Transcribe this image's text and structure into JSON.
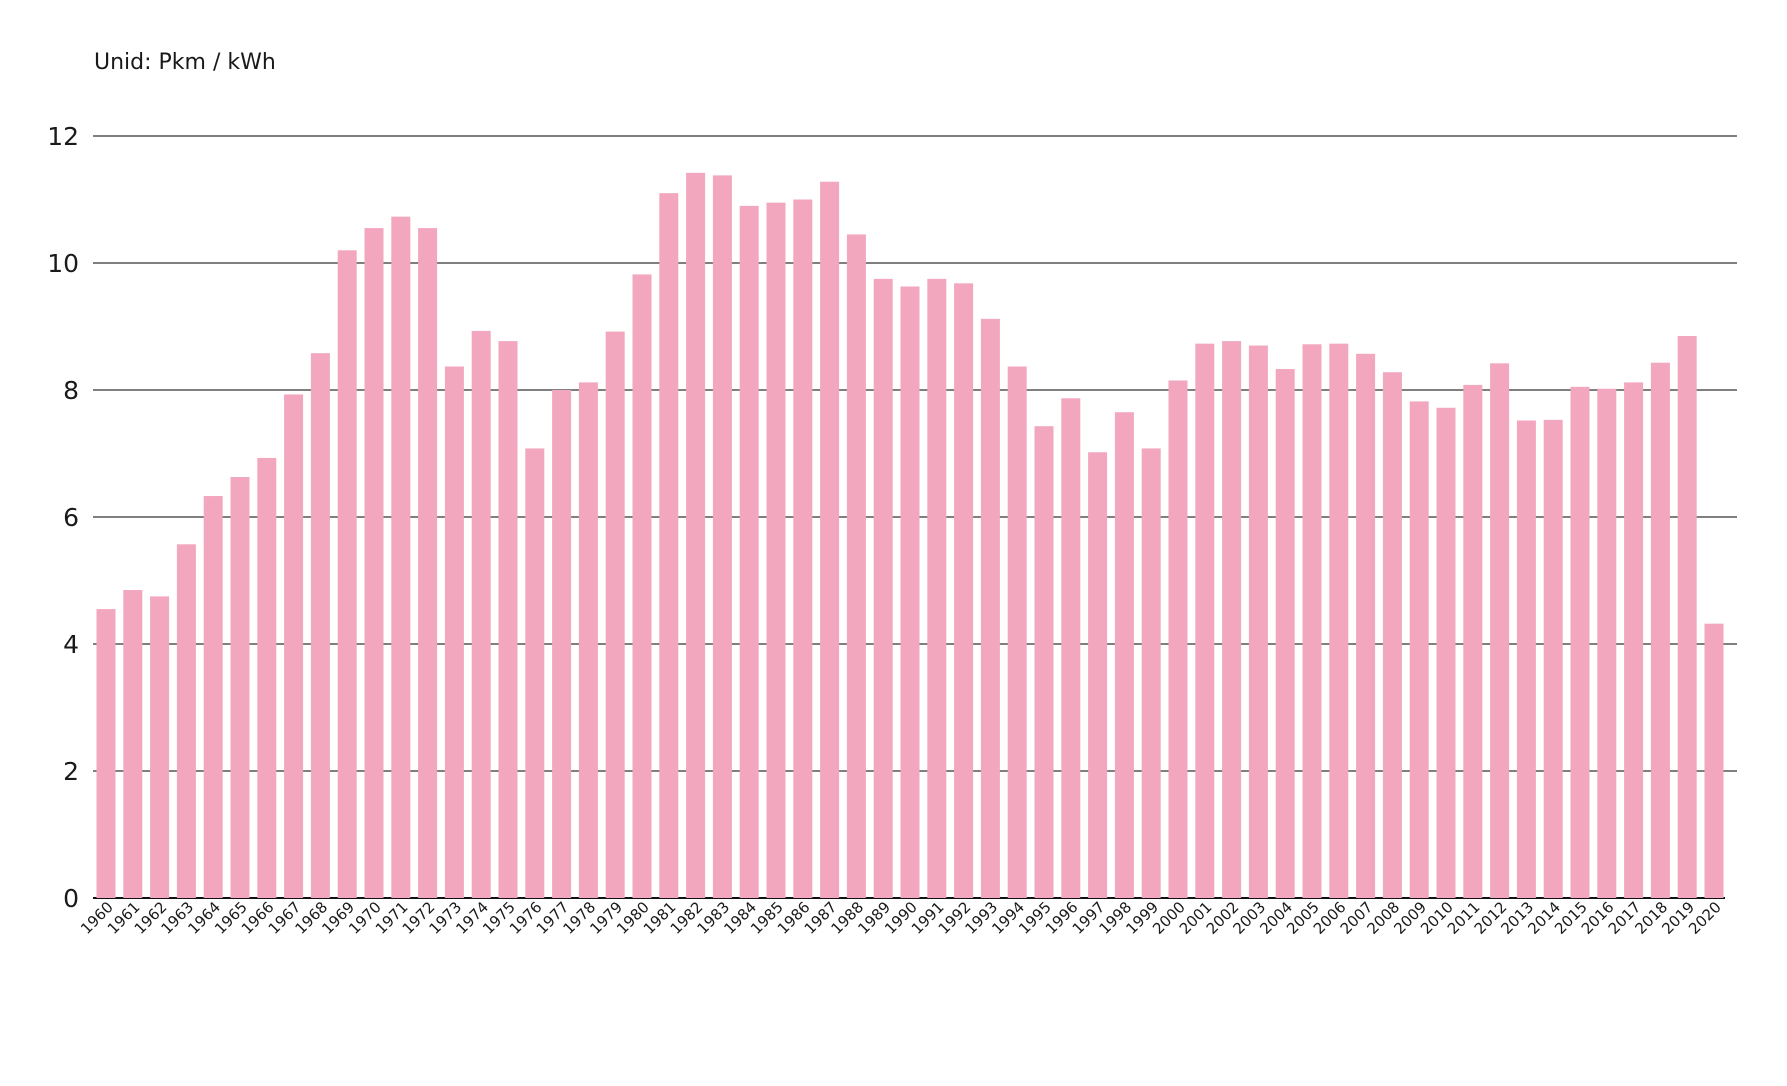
{
  "chart_data": {
    "type": "bar",
    "unit_label": "Unid: Pkm / kWh",
    "title": "",
    "xlabel": "",
    "ylabel": "",
    "ylim": [
      0,
      12
    ],
    "yticks": [
      0,
      2,
      4,
      6,
      8,
      10,
      12
    ],
    "grid": true,
    "bar_color": "#f2a7bf",
    "grid_color": "#555555",
    "categories": [
      "1960",
      "1961",
      "1962",
      "1963",
      "1964",
      "1965",
      "1966",
      "1967",
      "1968",
      "1969",
      "1970",
      "1971",
      "1972",
      "1973",
      "1974",
      "1975",
      "1976",
      "1977",
      "1978",
      "1979",
      "1980",
      "1981",
      "1982",
      "1983",
      "1984",
      "1985",
      "1986",
      "1987",
      "1988",
      "1989",
      "1990",
      "1991",
      "1992",
      "1993",
      "1994",
      "1995",
      "1996",
      "1997",
      "1998",
      "1999",
      "2000",
      "2001",
      "2002",
      "2003",
      "2004",
      "2005",
      "2006",
      "2007",
      "2008",
      "2009",
      "2010",
      "2011",
      "2012",
      "2013",
      "2014",
      "2015",
      "2016",
      "2017",
      "2018",
      "2019",
      "2020"
    ],
    "values": [
      4.55,
      4.85,
      4.75,
      5.57,
      6.33,
      6.63,
      6.93,
      7.93,
      8.58,
      10.2,
      10.55,
      10.73,
      10.55,
      8.37,
      8.93,
      8.77,
      7.08,
      8.0,
      8.12,
      8.92,
      9.82,
      11.1,
      11.42,
      11.38,
      10.9,
      10.95,
      11.0,
      11.28,
      10.45,
      9.75,
      9.63,
      9.75,
      9.68,
      9.12,
      8.37,
      7.43,
      7.87,
      7.02,
      7.65,
      7.08,
      8.15,
      8.73,
      8.77,
      8.7,
      8.33,
      8.72,
      8.73,
      8.57,
      8.28,
      7.82,
      7.72,
      8.08,
      8.42,
      7.52,
      7.53,
      8.05,
      8.02,
      8.12,
      8.43,
      8.85,
      4.32
    ]
  }
}
